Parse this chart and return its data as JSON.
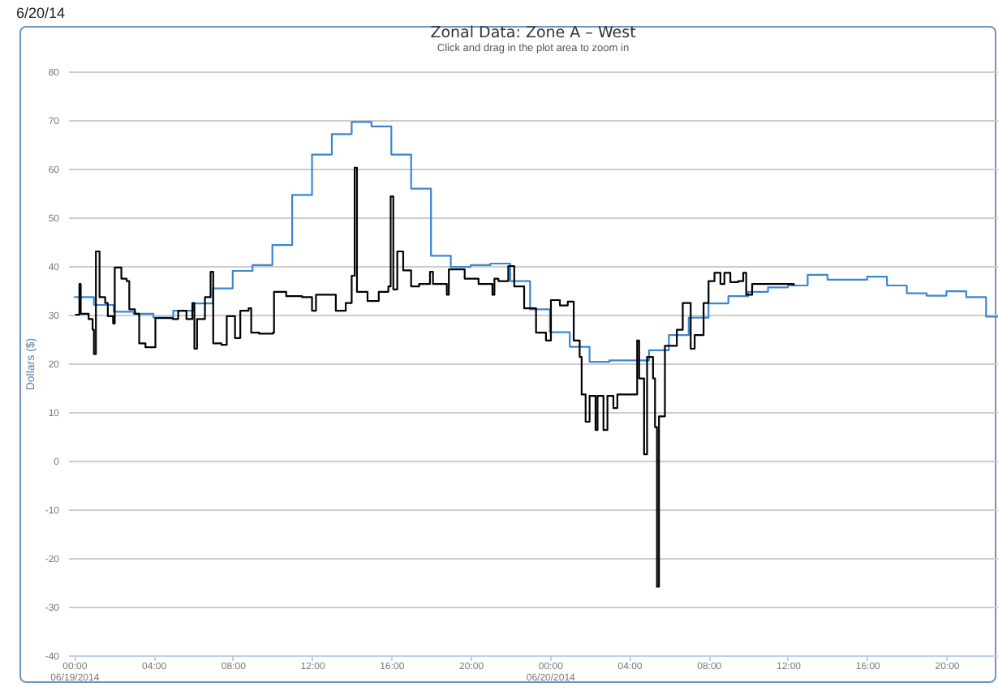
{
  "chart_data": {
    "type": "step",
    "title": "Zonal Data: Zone A – West",
    "subtitle": "Click and drag in the plot area to zoom in",
    "ylabel": "Dollars ($)",
    "annotations": [
      "6/20/14"
    ],
    "xlim": [
      "2014-06-18T23:42",
      "2014-06-20T22:36"
    ],
    "ylim": [
      -40,
      80
    ],
    "xticks": [
      {
        "value": "2014-06-19T00:00",
        "label": "00:00\n06/19/2014"
      },
      {
        "value": "2014-06-19T04:00",
        "label": "04:00"
      },
      {
        "value": "2014-06-19T08:00",
        "label": "08:00"
      },
      {
        "value": "2014-06-19T12:00",
        "label": "12:00"
      },
      {
        "value": "2014-06-19T16:00",
        "label": "16:00"
      },
      {
        "value": "2014-06-19T20:00",
        "label": "20:00"
      },
      {
        "value": "2014-06-20T00:00",
        "label": "00:00\n06/20/2014"
      },
      {
        "value": "2014-06-20T04:00",
        "label": "04:00"
      },
      {
        "value": "2014-06-20T08:00",
        "label": "08:00"
      },
      {
        "value": "2014-06-20T12:00",
        "label": "12:00"
      },
      {
        "value": "2014-06-20T16:00",
        "label": "16:00"
      },
      {
        "value": "2014-06-20T20:00",
        "label": "20:00"
      }
    ],
    "yticks": [
      -40,
      -30,
      -20,
      -10,
      0,
      10,
      20,
      30,
      40,
      50,
      60,
      70,
      80
    ],
    "grid": "y",
    "legend": false,
    "marker": "none",
    "line_style": "solid",
    "series": [
      {
        "color": "#3a86d4",
        "x": [
          "2014-06-19T00:00",
          "2014-06-19T01:00",
          "2014-06-19T02:00",
          "2014-06-19T03:00",
          "2014-06-19T04:00",
          "2014-06-19T05:00",
          "2014-06-19T06:00",
          "2014-06-19T07:00",
          "2014-06-19T08:00",
          "2014-06-19T09:00",
          "2014-06-19T10:00",
          "2014-06-19T11:00",
          "2014-06-19T12:00",
          "2014-06-19T13:00",
          "2014-06-19T14:00",
          "2014-06-19T15:00",
          "2014-06-19T16:00",
          "2014-06-19T17:00",
          "2014-06-19T18:00",
          "2014-06-19T19:00",
          "2014-06-19T20:00",
          "2014-06-19T21:00",
          "2014-06-19T22:00",
          "2014-06-19T23:00",
          "2014-06-20T00:00",
          "2014-06-20T01:00",
          "2014-06-20T02:00",
          "2014-06-20T03:00",
          "2014-06-20T04:00",
          "2014-06-20T05:00",
          "2014-06-20T06:00",
          "2014-06-20T07:00",
          "2014-06-20T08:00",
          "2014-06-20T09:00",
          "2014-06-20T10:00",
          "2014-06-20T11:00",
          "2014-06-20T12:00",
          "2014-06-20T13:00",
          "2014-06-20T14:00",
          "2014-06-20T15:00",
          "2014-06-20T16:00",
          "2014-06-20T17:00",
          "2014-06-20T18:00",
          "2014-06-20T19:00",
          "2014-06-20T20:00",
          "2014-06-20T21:00",
          "2014-06-20T22:00",
          "2014-06-20T22:36"
        ],
        "values": [
          33.6,
          32,
          30.6,
          30.2,
          29.4,
          30.8,
          32.3,
          35.4,
          39,
          40.2,
          44.3,
          54.6,
          62.9,
          67.1,
          69.6,
          68.7,
          62.9,
          55.9,
          42.1,
          39.8,
          40.2,
          40.5,
          36.9,
          31.1,
          26.4,
          23.4,
          20.3,
          20.6,
          20.6,
          22.7,
          25.8,
          29.4,
          32.3,
          33.8,
          34.7,
          35.6,
          36,
          38.2,
          37.2,
          37.2,
          37.8,
          36,
          34.4,
          33.9,
          34.8,
          33.6,
          29.6,
          29.6
        ]
      },
      {
        "color": "#000000",
        "x": [
          "2014-06-19T00:03",
          "2014-06-19T00:16",
          "2014-06-19T00:20",
          "2014-06-19T00:44",
          "2014-06-19T00:56",
          "2014-06-19T01:00",
          "2014-06-19T01:06",
          "2014-06-19T01:17",
          "2014-06-19T01:34",
          "2014-06-19T01:42",
          "2014-06-19T01:58",
          "2014-06-19T02:03",
          "2014-06-19T02:23",
          "2014-06-19T02:39",
          "2014-06-19T02:47",
          "2014-06-19T03:04",
          "2014-06-19T03:17",
          "2014-06-19T03:36",
          "2014-06-19T04:04",
          "2014-06-19T04:06",
          "2014-06-19T04:58",
          "2014-06-19T05:15",
          "2014-06-19T05:40",
          "2014-06-19T05:58",
          "2014-06-19T06:04",
          "2014-06-19T06:12",
          "2014-06-19T06:36",
          "2014-06-19T06:53",
          "2014-06-19T07:01",
          "2014-06-19T07:26",
          "2014-06-19T07:42",
          "2014-06-19T07:59",
          "2014-06-19T08:07",
          "2014-06-19T08:23",
          "2014-06-19T08:48",
          "2014-06-19T08:56",
          "2014-06-19T09:20",
          "2014-06-19T10:02",
          "2014-06-19T10:05",
          "2014-06-19T10:42",
          "2014-06-19T11:30",
          "2014-06-19T12:00",
          "2014-06-19T12:12",
          "2014-06-19T12:36",
          "2014-06-19T13:12",
          "2014-06-19T13:42",
          "2014-06-19T14:00",
          "2014-06-19T14:09",
          "2014-06-19T14:16",
          "2014-06-19T14:48",
          "2014-06-19T15:22",
          "2014-06-19T15:51",
          "2014-06-19T15:58",
          "2014-06-19T16:06",
          "2014-06-19T16:18",
          "2014-06-19T16:36",
          "2014-06-19T17:00",
          "2014-06-19T17:24",
          "2014-06-19T17:57",
          "2014-06-19T18:06",
          "2014-06-19T18:48",
          "2014-06-19T18:54",
          "2014-06-19T19:42",
          "2014-06-19T20:24",
          "2014-06-19T21:06",
          "2014-06-19T21:12",
          "2014-06-19T21:24",
          "2014-06-19T21:54",
          "2014-06-19T22:12",
          "2014-06-19T22:42",
          "2014-06-19T23:18",
          "2014-06-19T23:48",
          "2014-06-20T00:03",
          "2014-06-20T00:30",
          "2014-06-20T00:54",
          "2014-06-20T01:12",
          "2014-06-20T01:30",
          "2014-06-20T01:36",
          "2014-06-20T01:48",
          "2014-06-20T01:54",
          "2014-06-20T02:00",
          "2014-06-20T02:18",
          "2014-06-20T02:24",
          "2014-06-20T02:42",
          "2014-06-20T02:54",
          "2014-06-20T03:12",
          "2014-06-20T03:24",
          "2014-06-20T04:18",
          "2014-06-20T04:24",
          "2014-06-20T04:30",
          "2014-06-20T04:45",
          "2014-06-20T04:54",
          "2014-06-20T05:12",
          "2014-06-20T05:18",
          "2014-06-20T05:24",
          "2014-06-20T05:30",
          "2014-06-20T05:42",
          "2014-06-20T05:48",
          "2014-06-20T06:06",
          "2014-06-20T06:24",
          "2014-06-20T06:42",
          "2014-06-20T06:48",
          "2014-06-20T07:06",
          "2014-06-20T07:18",
          "2014-06-20T07:45",
          "2014-06-20T08:00",
          "2014-06-20T08:18",
          "2014-06-20T08:36",
          "2014-06-20T08:48",
          "2014-06-20T09:06",
          "2014-06-20T09:30",
          "2014-06-20T09:45",
          "2014-06-20T09:54",
          "2014-06-20T10:12",
          "2014-06-20T11:00",
          "2014-06-20T11:42",
          "2014-06-20T12:18"
        ],
        "values": [
          30,
          36.3,
          30.2,
          29.1,
          26.9,
          21.9,
          43,
          33.6,
          32.4,
          29.7,
          28.2,
          39.7,
          37.4,
          36.9,
          31.1,
          30.2,
          24.1,
          23.3,
          23.3,
          29.3,
          29.1,
          30.8,
          29.1,
          32.4,
          23,
          29.1,
          33.6,
          38.8,
          24.1,
          23.8,
          29.7,
          29.7,
          25.2,
          30.8,
          31.3,
          26.3,
          26.1,
          26.3,
          34.7,
          33.8,
          33.6,
          30.8,
          34.1,
          34.1,
          30.8,
          32.4,
          38,
          60.2,
          34.7,
          32.8,
          34.7,
          35.8,
          54.3,
          35.2,
          43,
          39.1,
          35.8,
          36.3,
          38.8,
          36.3,
          34.1,
          39.3,
          37.4,
          36.3,
          34.1,
          37.4,
          36.9,
          40,
          35.8,
          31.3,
          26.3,
          24.7,
          33,
          31.9,
          32.7,
          24.7,
          21.3,
          13.6,
          8,
          8,
          13.3,
          6.3,
          13.3,
          6.3,
          13.3,
          10.8,
          13.6,
          13.6,
          24.7,
          16.9,
          1.3,
          21.3,
          16.9,
          6.9,
          -25.9,
          9.1,
          9.1,
          23.6,
          23.6,
          26.9,
          32.4,
          32.4,
          23,
          25.8,
          32.4,
          36.9,
          38.6,
          36.3,
          38.6,
          36.7,
          36.9,
          38.6,
          34.1,
          36.3,
          36.3,
          36.3,
          36
        ]
      }
    ]
  }
}
